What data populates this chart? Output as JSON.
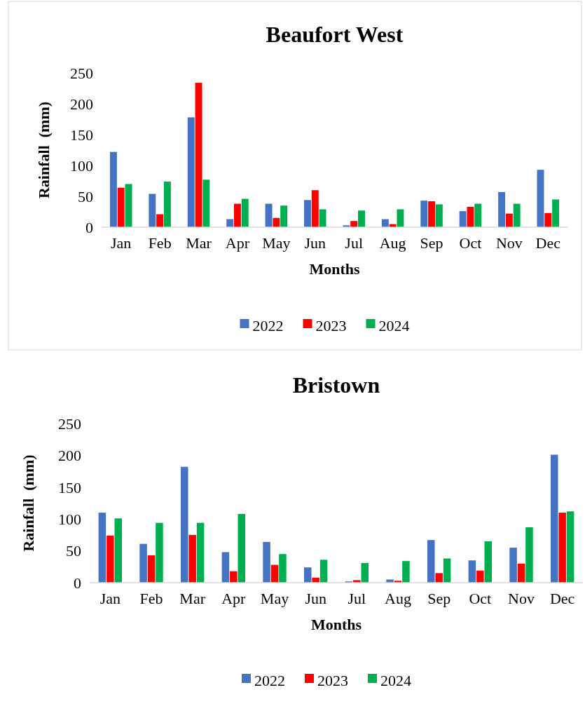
{
  "chart_data": [
    {
      "type": "bar",
      "title": "Beaufort West",
      "xlabel": "Months",
      "ylabel": "Rainfall  (mm)",
      "categories": [
        "Jan",
        "Feb",
        "Mar",
        "Apr",
        "May",
        "Jun",
        "Jul",
        "Aug",
        "Sep",
        "Oct",
        "Nov",
        "Dec"
      ],
      "series": [
        {
          "name": "2022",
          "color": "#4472c4",
          "values": [
            122,
            54,
            178,
            13,
            38,
            44,
            3,
            13,
            43,
            26,
            57,
            93
          ]
        },
        {
          "name": "2023",
          "color": "#ff0000",
          "values": [
            64,
            21,
            234,
            38,
            15,
            60,
            10,
            5,
            42,
            33,
            22,
            23
          ]
        },
        {
          "name": "2024",
          "color": "#00b050",
          "values": [
            70,
            74,
            77,
            46,
            35,
            29,
            27,
            29,
            37,
            38,
            38,
            45
          ]
        }
      ],
      "ylim": [
        0,
        250
      ],
      "yticks": [
        0,
        50,
        100,
        150,
        200,
        250
      ],
      "grid": false,
      "legend": "bottom"
    },
    {
      "type": "bar",
      "title": "Bristown",
      "xlabel": "Months",
      "ylabel": "Rainfall  (mm)",
      "categories": [
        "Jan",
        "Feb",
        "Mar",
        "Apr",
        "May",
        "Jun",
        "Jul",
        "Aug",
        "Sep",
        "Oct",
        "Nov",
        "Dec"
      ],
      "series": [
        {
          "name": "2022",
          "color": "#4472c4",
          "values": [
            110,
            61,
            182,
            48,
            64,
            24,
            2,
            5,
            67,
            35,
            55,
            201
          ]
        },
        {
          "name": "2023",
          "color": "#ff0000",
          "values": [
            74,
            43,
            75,
            18,
            28,
            8,
            4,
            3,
            15,
            19,
            30,
            110
          ]
        },
        {
          "name": "2024",
          "color": "#00b050",
          "values": [
            101,
            94,
            94,
            108,
            45,
            36,
            31,
            34,
            38,
            65,
            87,
            112
          ]
        }
      ],
      "ylim": [
        0,
        250
      ],
      "yticks": [
        0,
        50,
        100,
        150,
        200,
        250
      ],
      "grid": false,
      "legend": "bottom"
    }
  ]
}
